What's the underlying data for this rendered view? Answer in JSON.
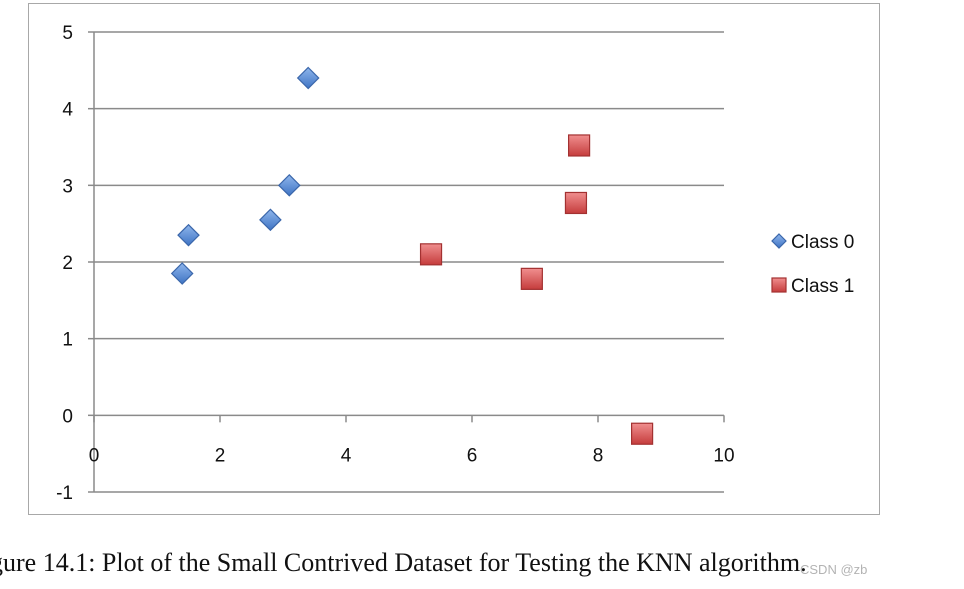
{
  "chart_data": {
    "type": "scatter",
    "xlim": [
      0,
      10
    ],
    "ylim": [
      -1,
      5
    ],
    "x_ticks": [
      "0",
      "2",
      "4",
      "6",
      "8",
      "10"
    ],
    "y_ticks": [
      "-1",
      "0",
      "1",
      "2",
      "3",
      "4",
      "5"
    ],
    "grid": "horizontal",
    "legend_position": "right",
    "series": [
      {
        "name": "Class 0",
        "marker": "diamond",
        "color": "#5b8ed6",
        "points": [
          {
            "x": 1.4,
            "y": 1.85
          },
          {
            "x": 1.5,
            "y": 2.35
          },
          {
            "x": 2.8,
            "y": 2.55
          },
          {
            "x": 3.1,
            "y": 3.0
          },
          {
            "x": 3.4,
            "y": 4.4
          }
        ]
      },
      {
        "name": "Class 1",
        "marker": "square",
        "color": "#e06666",
        "points": [
          {
            "x": 5.35,
            "y": 2.1
          },
          {
            "x": 6.95,
            "y": 1.78
          },
          {
            "x": 7.65,
            "y": 2.77
          },
          {
            "x": 7.7,
            "y": 3.52
          },
          {
            "x": 8.7,
            "y": -0.24
          }
        ]
      }
    ]
  },
  "caption": "gure 14.1: Plot of the Small Contrived Dataset for Testing the KNN algorithm.",
  "watermark": "CSDN @zb"
}
